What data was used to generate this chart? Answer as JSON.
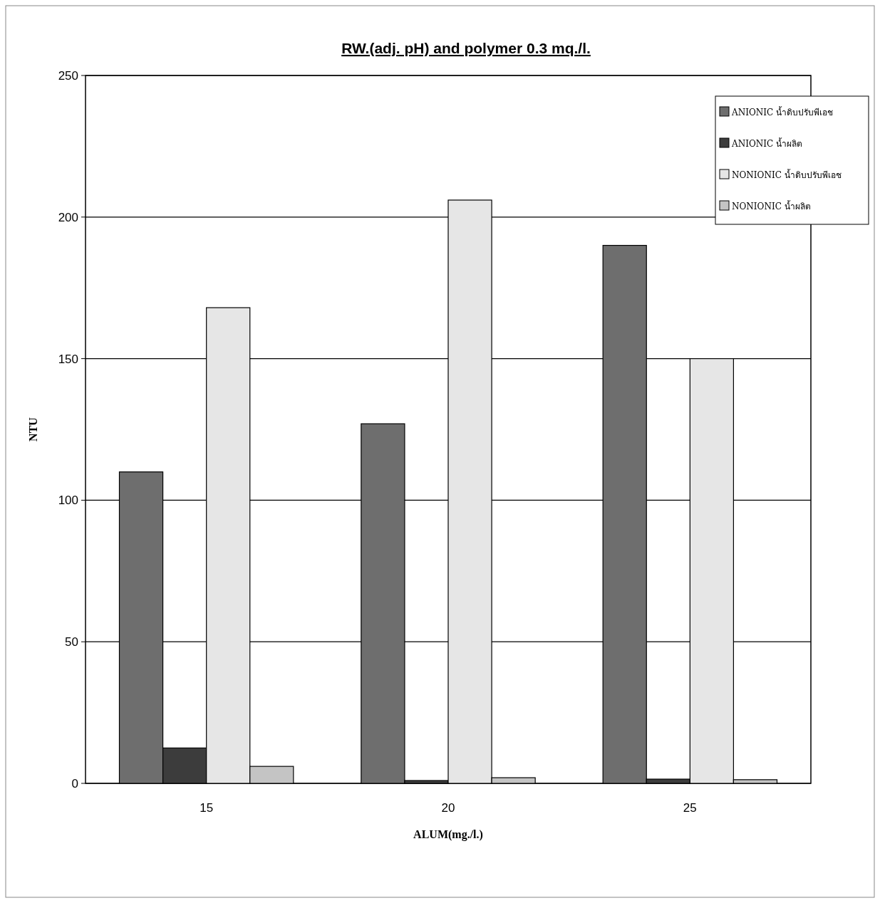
{
  "chart_data": {
    "type": "bar",
    "title": "RW.(adj. pH) and polymer 0.3 mq./l.",
    "xlabel": "ALUM(mg./l.)",
    "ylabel": "NTU",
    "categories": [
      "15",
      "20",
      "25"
    ],
    "series": [
      {
        "name": "ANIONIC  น้ำดิบปรับพีเอช",
        "color": "#6e6e6e",
        "values": [
          110,
          127,
          190
        ]
      },
      {
        "name": "ANIONIC  น้ำผลิต",
        "color": "#3c3c3c",
        "values": [
          12.5,
          1,
          1.5
        ]
      },
      {
        "name": "NONIONIC น้ำดิบปรับพีเอช",
        "color": "#e6e6e6",
        "values": [
          168,
          206,
          150
        ]
      },
      {
        "name": "NONIONIC น้ำผลิต",
        "color": "#c4c4c4",
        "values": [
          6,
          2,
          1.3
        ]
      }
    ],
    "ylim": [
      0,
      250
    ],
    "yticks": [
      0,
      50,
      100,
      150,
      200,
      250
    ],
    "grid": "y",
    "legend": "top right"
  }
}
